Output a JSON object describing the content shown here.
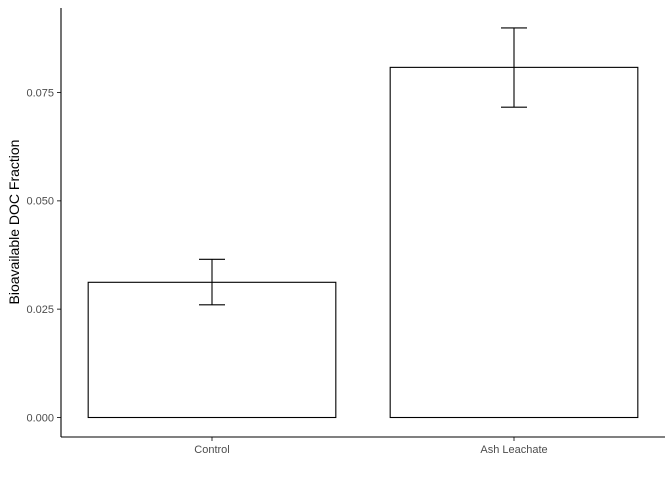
{
  "chart_data": {
    "type": "bar",
    "title": "",
    "xlabel": "",
    "ylabel": "Bioavailable DOC Fraction",
    "categories": [
      "Control",
      "Ash Leachate"
    ],
    "values": [
      0.0312,
      0.0808
    ],
    "error_bars": [
      {
        "low": 0.026,
        "high": 0.0365
      },
      {
        "low": 0.0716,
        "high": 0.0899
      }
    ],
    "ylim": [
      -0.0045,
      0.0945
    ],
    "yticks": [
      0.0,
      0.025,
      0.05,
      0.075
    ],
    "ytick_labels": [
      "0.000",
      "0.025",
      "0.050",
      "0.075"
    ],
    "grid": false,
    "bar_fill": "#ffffff",
    "bar_stroke": "#000000"
  }
}
